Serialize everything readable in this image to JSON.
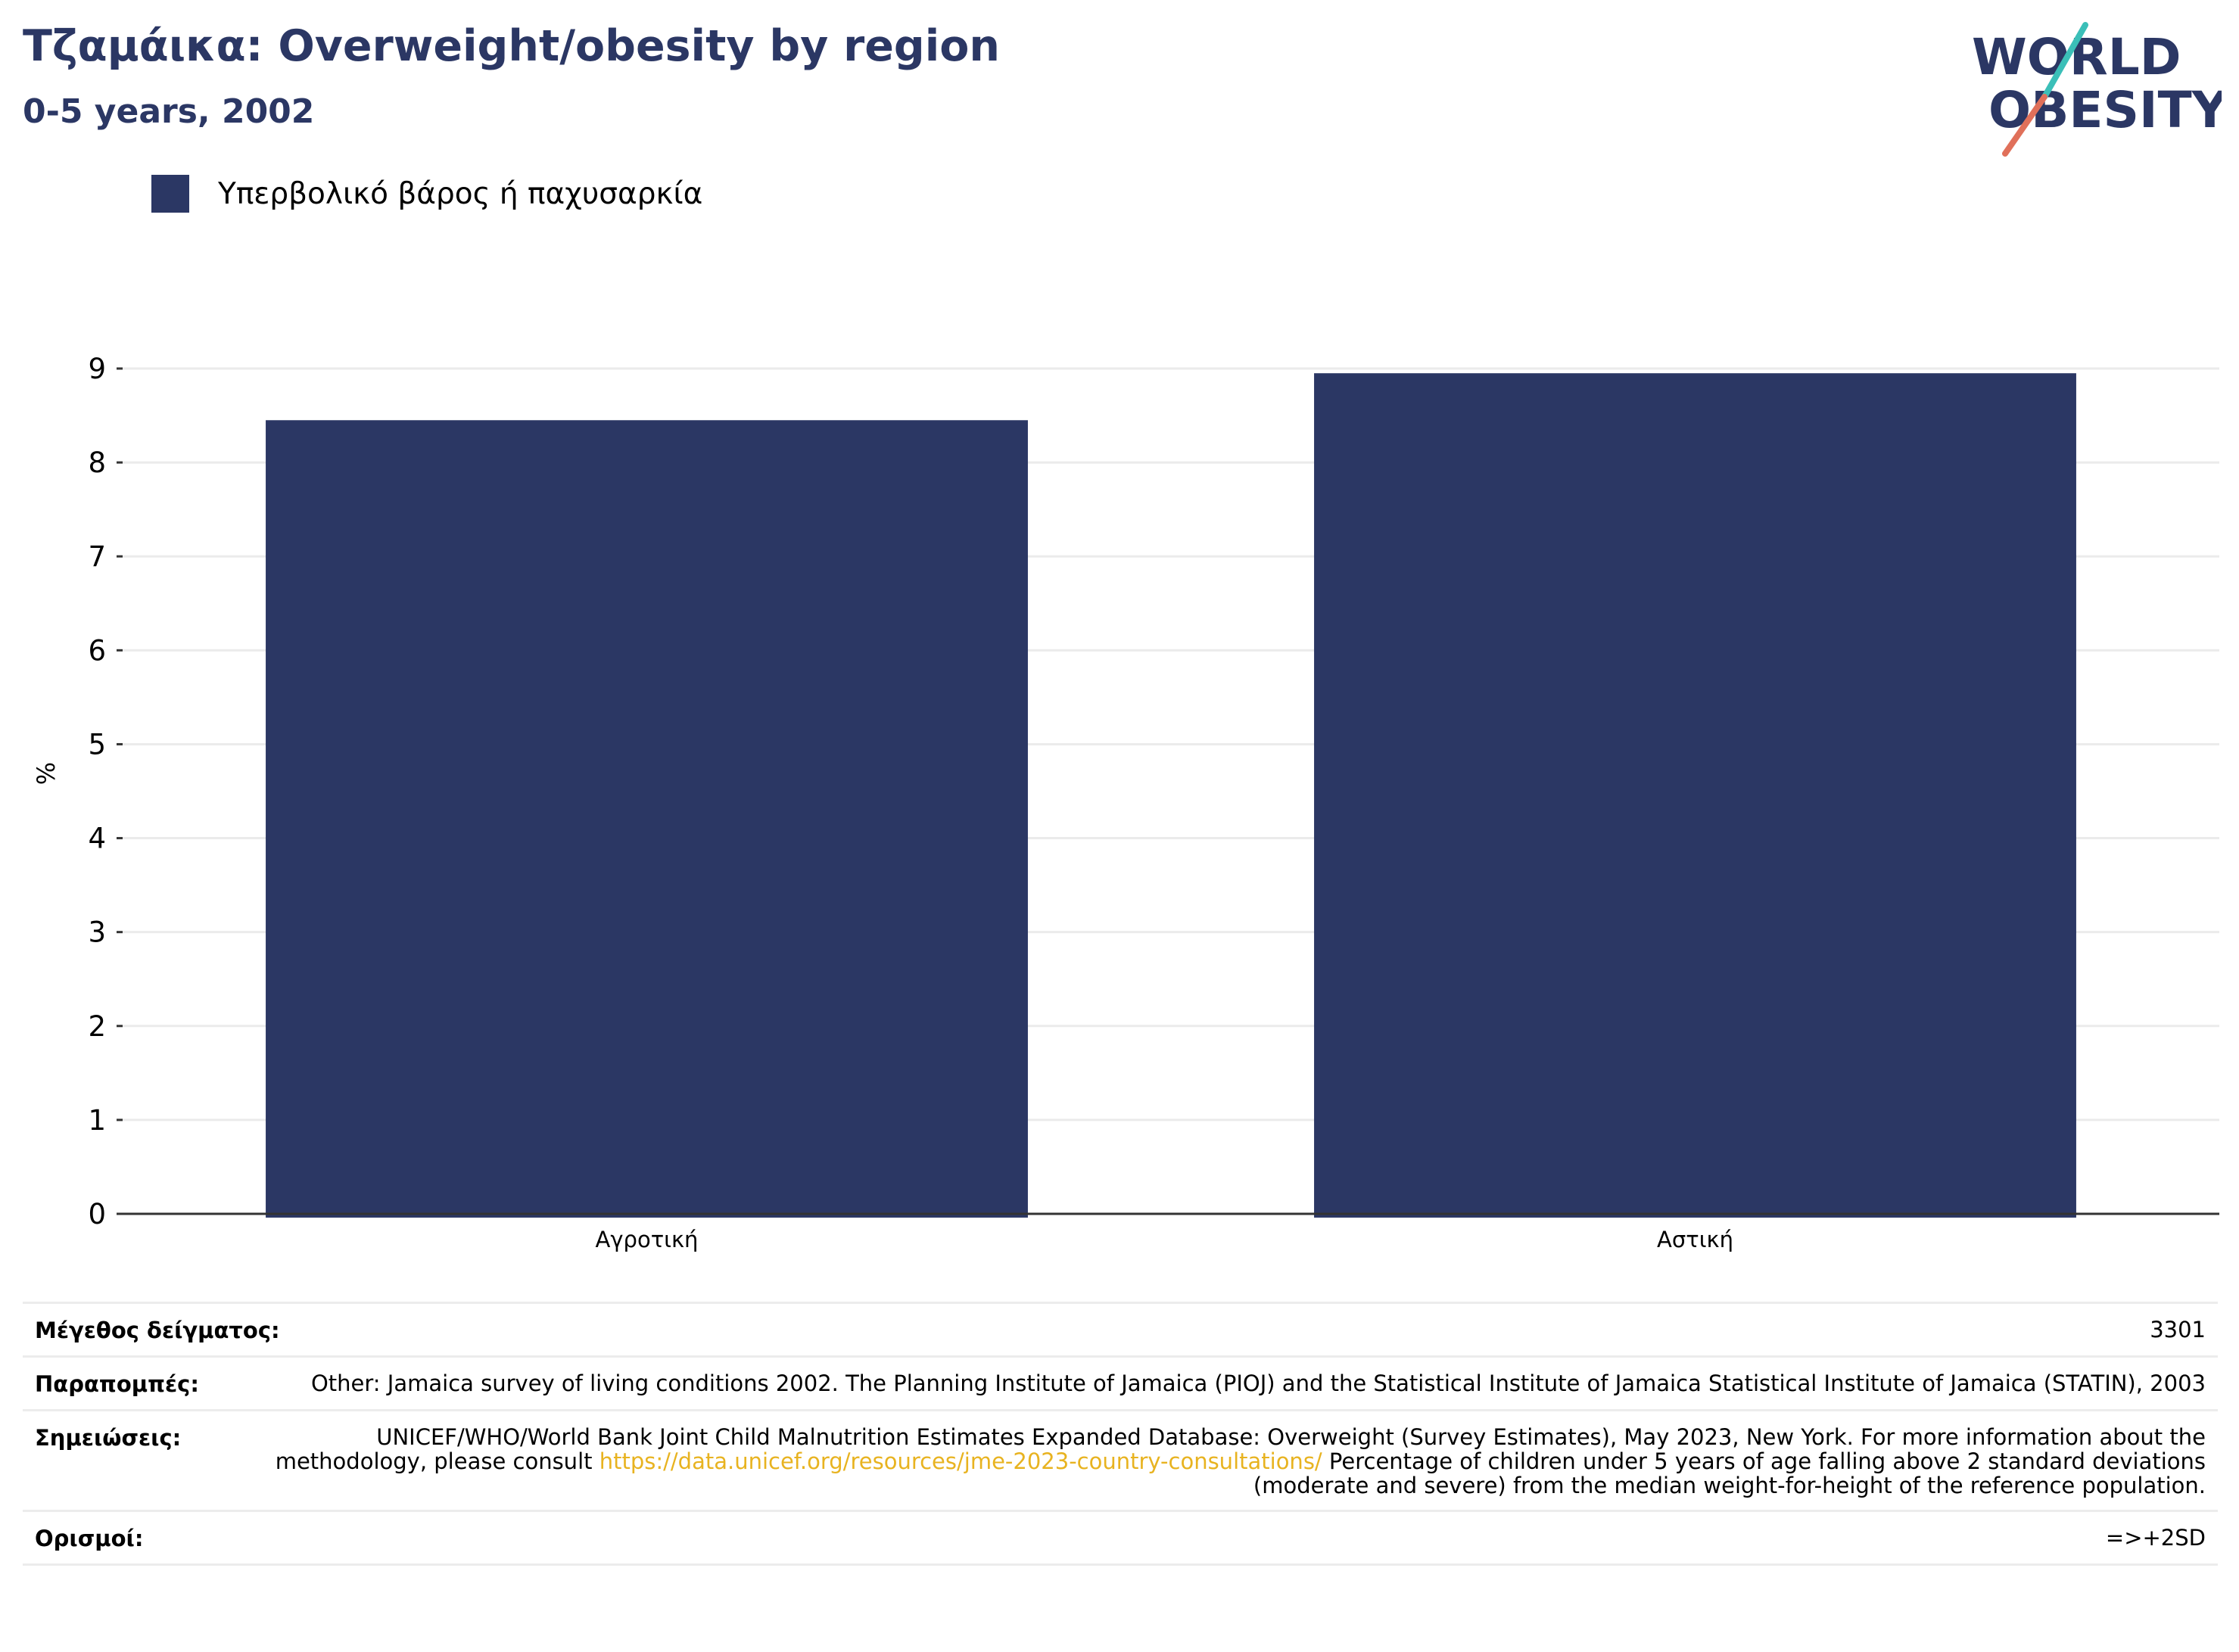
{
  "header": {
    "title": "Τζαμάικα: Overweight/obesity by region",
    "subtitle": "0-5 years, 2002"
  },
  "logo": {
    "line1": "WORLD",
    "line2": "OBESITY",
    "colors": {
      "text": "#2b3764",
      "slash_top": "#3bbfb8",
      "slash_bottom": "#e0705a"
    }
  },
  "legend": {
    "label": "Υπερβολικό βάρος ή παχυσαρκία",
    "color": "#2b3764"
  },
  "chart_data": {
    "type": "bar",
    "categories": [
      "Αγροτική",
      "Αστική"
    ],
    "series": [
      {
        "name": "Υπερβολικό βάρος ή παχυσαρκία",
        "values": [
          8.45,
          8.95
        ],
        "color": "#2b3764"
      }
    ],
    "ylabel": "%",
    "xlabel": "",
    "ylim": [
      0,
      9
    ],
    "yticks": [
      0,
      1,
      2,
      3,
      4,
      5,
      6,
      7,
      8,
      9
    ],
    "grid": true,
    "legend_position": "top-left"
  },
  "info": {
    "sample_size": {
      "label": "Μέγεθος δείγματος:",
      "value": "3301"
    },
    "references": {
      "label": "Παραπομπές:",
      "value": "Other: Jamaica survey of living conditions 2002. The Planning Institute of Jamaica (PIOJ) and the Statistical Institute of Jamaica Statistical Institute of Jamaica (STATIN), 2003"
    },
    "notes": {
      "label": "Σημειώσεις:",
      "text_before": "UNICEF/WHO/World Bank Joint Child Malnutrition Estimates Expanded Database: Overweight (Survey Estimates), May 2023, New York. For more information about the methodology, please consult ",
      "link": "https://data.unicef.org/resources/jme-2023-country-consultations/",
      "text_after": " Percentage of children under 5 years of age falling above 2 standard deviations (moderate and severe) from the median weight-for-height of the reference population."
    },
    "definitions": {
      "label": "Ορισμοί:",
      "value": "=>+2SD"
    }
  }
}
